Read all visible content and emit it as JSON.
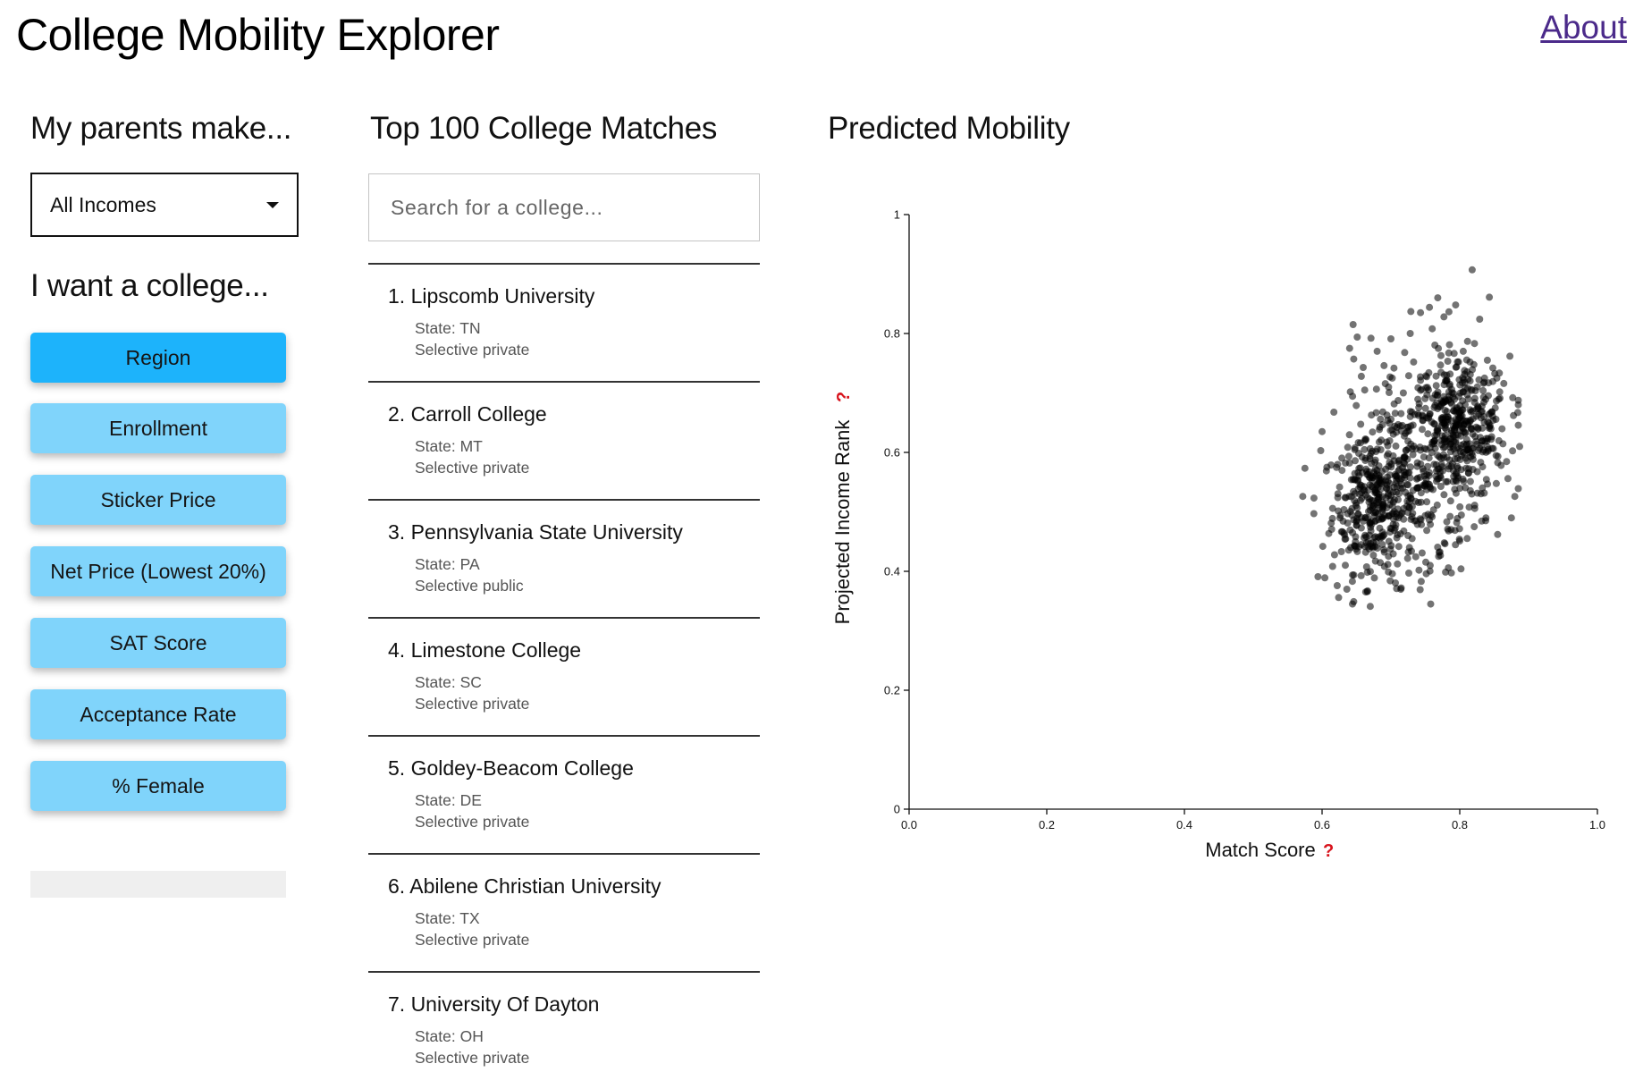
{
  "header": {
    "title": "College Mobility Explorer",
    "about_label": "About"
  },
  "income": {
    "heading": "My parents make...",
    "selected": "All Incomes"
  },
  "preferences": {
    "heading": "I want a college...",
    "buttons": [
      {
        "label": "Region",
        "active": true
      },
      {
        "label": "Enrollment",
        "active": false
      },
      {
        "label": "Sticker Price",
        "active": false
      },
      {
        "label": "Net Price (Lowest 20%)",
        "active": false
      },
      {
        "label": "SAT Score",
        "active": false
      },
      {
        "label": "Acceptance Rate",
        "active": false
      },
      {
        "label": "% Female",
        "active": false
      }
    ]
  },
  "matches": {
    "heading": "Top 100 College Matches",
    "search_placeholder": "Search for a college...",
    "colleges": [
      {
        "name": "1. Lipscomb University",
        "state": "State: TN",
        "type": "Selective private"
      },
      {
        "name": "2. Carroll College",
        "state": "State: MT",
        "type": "Selective private"
      },
      {
        "name": "3. Pennsylvania State University",
        "state": "State: PA",
        "type": "Selective public"
      },
      {
        "name": "4. Limestone College",
        "state": "State: SC",
        "type": "Selective private"
      },
      {
        "name": "5. Goldey-Beacom College",
        "state": "State: DE",
        "type": "Selective private"
      },
      {
        "name": "6. Abilene Christian University",
        "state": "State: TX",
        "type": "Selective private"
      },
      {
        "name": "7. University Of Dayton",
        "state": "State: OH",
        "type": "Selective private"
      }
    ]
  },
  "mobility": {
    "heading": "Predicted Mobility"
  },
  "chart_data": {
    "type": "scatter",
    "xlabel": "Match Score",
    "ylabel": "Projected Income Rank",
    "help_mark": "?",
    "xlim": [
      0,
      1
    ],
    "ylim": [
      0,
      1
    ],
    "x_ticks": [
      "0.0",
      "0.2",
      "0.4",
      "0.6",
      "0.8",
      "1.0"
    ],
    "y_ticks": [
      "0",
      "0.2",
      "0.4",
      "0.6",
      "0.8",
      "1"
    ],
    "point_color": "#000000",
    "point_opacity": 0.55,
    "points": [
      [
        0.818,
        0.907
      ],
      [
        0.843,
        0.861
      ],
      [
        0.768,
        0.86
      ],
      [
        0.794,
        0.848
      ],
      [
        0.756,
        0.844
      ],
      [
        0.729,
        0.837
      ],
      [
        0.743,
        0.835
      ],
      [
        0.777,
        0.828
      ],
      [
        0.829,
        0.824
      ],
      [
        0.645,
        0.815
      ],
      [
        0.651,
        0.794
      ],
      [
        0.671,
        0.792
      ],
      [
        0.7,
        0.791
      ],
      [
        0.728,
        0.8
      ],
      [
        0.76,
        0.808
      ],
      [
        0.785,
        0.781
      ],
      [
        0.64,
        0.775
      ],
      [
        0.68,
        0.77
      ],
      [
        0.72,
        0.768
      ],
      [
        0.805,
        0.77
      ],
      [
        0.646,
        0.757
      ],
      [
        0.69,
        0.746
      ],
      [
        0.733,
        0.752
      ],
      [
        0.755,
        0.734
      ],
      [
        0.815,
        0.752
      ],
      [
        0.848,
        0.742
      ],
      [
        0.657,
        0.728
      ],
      [
        0.702,
        0.725
      ],
      [
        0.836,
        0.725
      ],
      [
        0.864,
        0.716
      ],
      [
        0.662,
        0.705
      ],
      [
        0.718,
        0.7
      ],
      [
        0.877,
        0.692
      ],
      [
        0.878,
        0.662
      ],
      [
        0.887,
        0.61
      ],
      [
        0.6,
        0.635
      ],
      [
        0.598,
        0.603
      ],
      [
        0.607,
        0.575
      ],
      [
        0.572,
        0.526
      ],
      [
        0.588,
        0.497
      ],
      [
        0.601,
        0.442
      ],
      [
        0.594,
        0.391
      ],
      [
        0.604,
        0.389
      ],
      [
        0.622,
        0.376
      ],
      [
        0.624,
        0.356
      ],
      [
        0.636,
        0.37
      ],
      [
        0.646,
        0.349
      ],
      [
        0.666,
        0.367
      ],
      [
        0.67,
        0.341
      ],
      [
        0.699,
        0.384
      ],
      [
        0.715,
        0.372
      ],
      [
        0.726,
        0.397
      ],
      [
        0.744,
        0.383
      ],
      [
        0.757,
        0.41
      ],
      [
        0.77,
        0.432
      ],
      [
        0.8,
        0.451
      ],
      [
        0.821,
        0.475
      ],
      [
        0.838,
        0.49
      ],
      [
        0.855,
        0.462
      ],
      [
        0.875,
        0.49
      ],
      [
        0.88,
        0.526
      ],
      [
        0.87,
        0.556
      ],
      [
        0.76,
        0.617
      ],
      [
        0.741,
        0.682
      ],
      [
        0.698,
        0.649
      ]
    ],
    "clusters": [
      {
        "cx": 0.675,
        "cy": 0.51,
        "sx": 0.03,
        "sy": 0.055,
        "n": 330
      },
      {
        "cx": 0.8,
        "cy": 0.64,
        "sx": 0.036,
        "sy": 0.06,
        "n": 380
      },
      {
        "cx": 0.735,
        "cy": 0.57,
        "sx": 0.045,
        "sy": 0.09,
        "n": 260
      }
    ]
  }
}
